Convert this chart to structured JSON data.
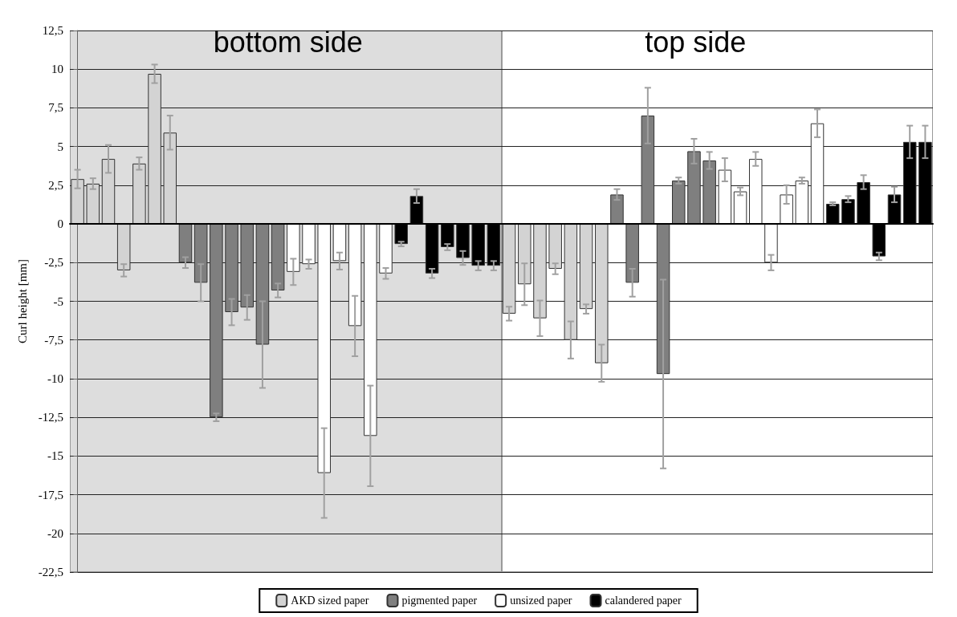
{
  "chart_data": {
    "type": "bar",
    "ylabel": "Curl height [mm]",
    "categories": [
      null,
      null,
      null,
      null,
      null,
      null,
      null,
      null,
      null,
      null,
      null,
      null,
      null,
      null,
      null,
      null,
      null,
      null,
      null,
      null,
      null,
      null,
      null,
      null,
      null,
      null,
      null,
      null,
      null,
      null,
      null,
      null,
      null,
      null,
      null,
      null,
      null,
      null,
      null,
      null,
      null,
      null,
      null,
      null,
      null,
      null,
      null,
      null,
      null,
      null,
      null,
      null,
      null,
      null,
      null,
      null
    ],
    "series": [
      {
        "name": "AKD sized paper",
        "color": "#d3d3d3",
        "values": [
          2.9,
          2.6,
          4.2,
          -3.0,
          3.9,
          9.7,
          5.9,
          null,
          null,
          null,
          null,
          null,
          null,
          null,
          null,
          null,
          null,
          null,
          null,
          null,
          null,
          null,
          null,
          null,
          null,
          null,
          null,
          null,
          -5.8,
          -3.9,
          -6.1,
          -2.9,
          -7.5,
          -5.5,
          -9.0,
          null,
          null,
          null,
          null,
          null,
          null,
          null,
          null,
          null,
          null,
          null,
          null,
          null,
          null,
          null,
          null,
          null,
          null,
          null,
          null,
          null
        ],
        "errors": [
          0.6,
          0.35,
          0.9,
          0.4,
          0.4,
          0.6,
          1.1,
          null,
          null,
          null,
          null,
          null,
          null,
          null,
          null,
          null,
          null,
          null,
          null,
          null,
          null,
          null,
          null,
          null,
          null,
          null,
          null,
          null,
          0.45,
          1.35,
          1.15,
          0.35,
          1.2,
          0.3,
          1.2,
          null,
          null,
          null,
          null,
          null,
          null,
          null,
          null,
          null,
          null,
          null,
          null,
          null,
          null,
          null,
          null,
          null,
          null,
          null,
          null,
          null
        ]
      },
      {
        "name": "pigmented paper",
        "color": "#7f7f7f",
        "values": [
          null,
          null,
          null,
          null,
          null,
          null,
          null,
          -2.5,
          -3.8,
          -12.5,
          -5.7,
          -5.4,
          -7.8,
          -4.3,
          null,
          null,
          null,
          null,
          null,
          null,
          null,
          null,
          null,
          null,
          null,
          null,
          null,
          null,
          null,
          null,
          null,
          null,
          null,
          null,
          null,
          1.9,
          -3.8,
          7.0,
          -9.7,
          2.8,
          4.7,
          4.1,
          null,
          null,
          null,
          null,
          null,
          null,
          null,
          null,
          null,
          null,
          null,
          null,
          null,
          null
        ],
        "errors": [
          null,
          null,
          null,
          null,
          null,
          null,
          null,
          0.35,
          1.2,
          0.25,
          0.85,
          0.8,
          2.8,
          0.45,
          null,
          null,
          null,
          null,
          null,
          null,
          null,
          null,
          null,
          null,
          null,
          null,
          null,
          null,
          null,
          null,
          null,
          null,
          null,
          null,
          null,
          0.35,
          0.9,
          1.8,
          6.1,
          0.2,
          0.8,
          0.55,
          null,
          null,
          null,
          null,
          null,
          null,
          null,
          null,
          null,
          null,
          null,
          null,
          null,
          null
        ]
      },
      {
        "name": "unsized paper",
        "color": "#ffffff",
        "values": [
          null,
          null,
          null,
          null,
          null,
          null,
          null,
          null,
          null,
          null,
          null,
          null,
          null,
          null,
          -3.1,
          -2.6,
          -16.1,
          -2.4,
          -6.6,
          -13.7,
          -3.2,
          null,
          null,
          null,
          null,
          null,
          null,
          null,
          null,
          null,
          null,
          null,
          null,
          null,
          null,
          null,
          null,
          null,
          null,
          null,
          null,
          null,
          3.5,
          2.1,
          4.2,
          -2.5,
          1.9,
          2.8,
          6.5,
          null,
          null,
          null,
          null,
          null,
          null,
          null
        ],
        "errors": [
          null,
          null,
          null,
          null,
          null,
          null,
          null,
          null,
          null,
          null,
          null,
          null,
          null,
          null,
          0.85,
          0.3,
          2.9,
          0.55,
          1.95,
          3.25,
          0.35,
          null,
          null,
          null,
          null,
          null,
          null,
          null,
          null,
          null,
          null,
          null,
          null,
          null,
          null,
          null,
          null,
          null,
          null,
          null,
          null,
          null,
          0.75,
          0.25,
          0.45,
          0.5,
          0.6,
          0.2,
          0.9,
          null,
          null,
          null,
          null,
          null,
          null,
          null
        ]
      },
      {
        "name": "calandered paper",
        "color": "#000000",
        "values": [
          null,
          null,
          null,
          null,
          null,
          null,
          null,
          null,
          null,
          null,
          null,
          null,
          null,
          null,
          null,
          null,
          null,
          null,
          null,
          null,
          null,
          -1.3,
          1.8,
          -3.2,
          -1.5,
          -2.2,
          -2.7,
          -2.7,
          null,
          null,
          null,
          null,
          null,
          null,
          null,
          null,
          null,
          null,
          null,
          null,
          null,
          null,
          null,
          null,
          null,
          null,
          null,
          null,
          null,
          1.3,
          1.6,
          2.7,
          -2.1,
          1.9,
          5.3,
          5.3
        ],
        "errors": [
          null,
          null,
          null,
          null,
          null,
          null,
          null,
          null,
          null,
          null,
          null,
          null,
          null,
          null,
          null,
          null,
          null,
          null,
          null,
          null,
          null,
          0.15,
          0.45,
          0.3,
          0.2,
          0.45,
          0.3,
          0.3,
          null,
          null,
          null,
          null,
          null,
          null,
          null,
          null,
          null,
          null,
          null,
          null,
          null,
          null,
          null,
          null,
          null,
          null,
          null,
          null,
          null,
          0.1,
          0.2,
          0.45,
          0.25,
          0.5,
          1.05,
          1.05
        ]
      }
    ],
    "annotations": [
      "bottom side",
      "top side"
    ],
    "ylim": [
      -22.5,
      12.5
    ],
    "yticks": [
      {
        "value": 12.5,
        "label": "12,5"
      },
      10,
      {
        "value": 7.5,
        "label": "7,5"
      },
      5,
      {
        "value": 2.5,
        "label": "2,5"
      },
      0,
      {
        "value": -2.5,
        "label": "-2,5"
      },
      -5,
      {
        "value": -7.5,
        "label": "-7,5"
      },
      -10,
      {
        "value": -12.5,
        "label": "-12,5"
      },
      -15,
      {
        "value": -17.5,
        "label": "-17,5"
      },
      -20,
      {
        "value": -22.5,
        "label": "-22,5"
      }
    ],
    "grid": "y",
    "legend": "bottom",
    "tick_labels": "y"
  }
}
